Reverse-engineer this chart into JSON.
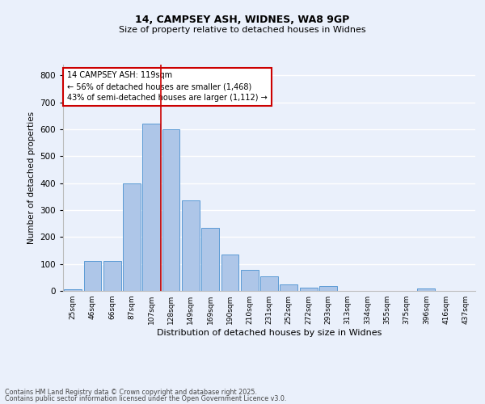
{
  "title1": "14, CAMPSEY ASH, WIDNES, WA8 9GP",
  "title2": "Size of property relative to detached houses in Widnes",
  "xlabel": "Distribution of detached houses by size in Widnes",
  "ylabel": "Number of detached properties",
  "categories": [
    "25sqm",
    "46sqm",
    "66sqm",
    "87sqm",
    "107sqm",
    "128sqm",
    "149sqm",
    "169sqm",
    "190sqm",
    "210sqm",
    "231sqm",
    "252sqm",
    "272sqm",
    "293sqm",
    "313sqm",
    "334sqm",
    "355sqm",
    "375sqm",
    "396sqm",
    "416sqm",
    "437sqm"
  ],
  "values": [
    5,
    110,
    110,
    400,
    620,
    600,
    335,
    235,
    135,
    78,
    55,
    25,
    12,
    17,
    0,
    0,
    0,
    0,
    8,
    0,
    0
  ],
  "bar_color": "#aec6e8",
  "bar_edge_color": "#5b9bd5",
  "bg_color": "#eaf0fb",
  "grid_color": "#ffffff",
  "vline_color": "#cc0000",
  "annotation_text": "14 CAMPSEY ASH: 119sqm\n← 56% of detached houses are smaller (1,468)\n43% of semi-detached houses are larger (1,112) →",
  "annotation_box_color": "#ffffff",
  "annotation_box_edge": "#cc0000",
  "ylim": [
    0,
    840
  ],
  "yticks": [
    0,
    100,
    200,
    300,
    400,
    500,
    600,
    700,
    800
  ],
  "footer1": "Contains HM Land Registry data © Crown copyright and database right 2025.",
  "footer2": "Contains public sector information licensed under the Open Government Licence v3.0."
}
